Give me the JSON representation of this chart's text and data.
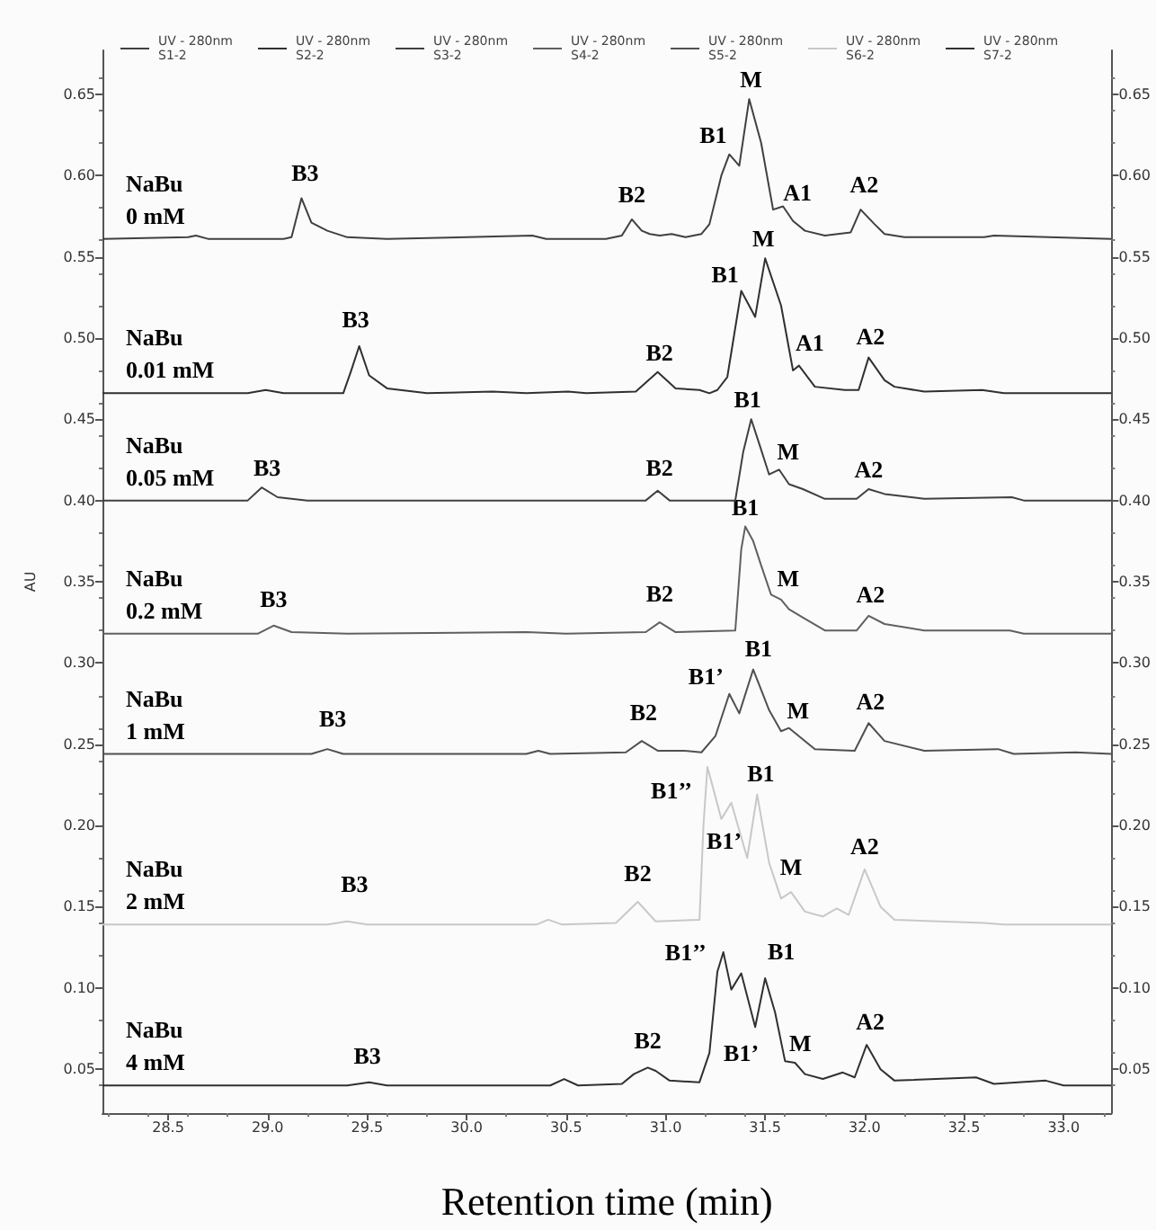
{
  "chart_data": {
    "type": "line",
    "xlabel": "Retention time (min)",
    "ylabel": "AU",
    "xlim": [
      28.17,
      33.24
    ],
    "xticks": [
      {
        "value": 28.5,
        "label": "28.5"
      },
      {
        "value": 29.0,
        "label": "29.0"
      },
      {
        "value": 29.5,
        "label": "29.5"
      },
      {
        "value": 30.0,
        "label": "30.0"
      },
      {
        "value": 30.5,
        "label": "30.5"
      },
      {
        "value": 31.0,
        "label": "31.0"
      },
      {
        "value": 31.5,
        "label": "31.5"
      },
      {
        "value": 32.0,
        "label": "32.0"
      },
      {
        "value": 32.5,
        "label": "32.5"
      },
      {
        "value": 33.0,
        "label": "33.0"
      }
    ],
    "ylim": [
      0.023,
      0.677
    ],
    "yticks": [
      {
        "value": 0.05,
        "label": "0.05"
      },
      {
        "value": 0.1,
        "label": "0.10"
      },
      {
        "value": 0.15,
        "label": "0.15"
      },
      {
        "value": 0.2,
        "label": "0.20"
      },
      {
        "value": 0.25,
        "label": "0.25"
      },
      {
        "value": 0.3,
        "label": "0.30"
      },
      {
        "value": 0.35,
        "label": "0.35"
      },
      {
        "value": 0.4,
        "label": "0.40"
      },
      {
        "value": 0.45,
        "label": "0.45"
      },
      {
        "value": 0.5,
        "label": "0.50"
      },
      {
        "value": 0.55,
        "label": "0.55"
      },
      {
        "value": 0.6,
        "label": "0.60"
      },
      {
        "value": 0.65,
        "label": "0.65"
      }
    ],
    "y2lim": [
      0.023,
      0.677
    ],
    "y2ticks": [
      {
        "value": 0.05,
        "label": "0.05"
      },
      {
        "value": 0.1,
        "label": "0.10"
      },
      {
        "value": 0.15,
        "label": "0.15"
      },
      {
        "value": 0.2,
        "label": "0.20"
      },
      {
        "value": 0.25,
        "label": "0.25"
      },
      {
        "value": 0.3,
        "label": "0.30"
      },
      {
        "value": 0.35,
        "label": "0.35"
      },
      {
        "value": 0.4,
        "label": "0.40"
      },
      {
        "value": 0.45,
        "label": "0.45"
      },
      {
        "value": 0.5,
        "label": "0.50"
      },
      {
        "value": 0.55,
        "label": "0.55"
      },
      {
        "value": 0.6,
        "label": "0.60"
      },
      {
        "value": 0.65,
        "label": "0.65"
      }
    ],
    "grid": false,
    "legend": "top",
    "marker": "none",
    "line_style": "solid",
    "series": [
      {
        "name": "UV - 280nm\nS1-2",
        "color": "#404040",
        "x": [
          28.17,
          28.6,
          28.64,
          28.7,
          29.08,
          29.12,
          29.17,
          29.22,
          29.3,
          29.4,
          29.6,
          30.0,
          30.33,
          30.4,
          30.7,
          30.78,
          30.83,
          30.88,
          30.92,
          30.97,
          31.03,
          31.1,
          31.18,
          31.22,
          31.28,
          31.32,
          31.37,
          31.42,
          31.48,
          31.54,
          31.59,
          31.64,
          31.7,
          31.8,
          31.93,
          31.98,
          32.05,
          32.1,
          32.2,
          32.6,
          32.65,
          33.24
        ],
        "values": [
          0.561,
          0.562,
          0.563,
          0.561,
          0.561,
          0.562,
          0.586,
          0.571,
          0.566,
          0.562,
          0.561,
          0.562,
          0.563,
          0.561,
          0.561,
          0.563,
          0.573,
          0.566,
          0.564,
          0.563,
          0.564,
          0.562,
          0.564,
          0.57,
          0.6,
          0.613,
          0.606,
          0.647,
          0.62,
          0.579,
          0.581,
          0.572,
          0.566,
          0.563,
          0.565,
          0.579,
          0.57,
          0.564,
          0.562,
          0.562,
          0.563,
          0.561
        ]
      },
      {
        "name": "UV - 280nm\nS2-2",
        "color": "#303030",
        "x": [
          28.17,
          28.9,
          28.99,
          29.08,
          29.38,
          29.42,
          29.46,
          29.51,
          29.6,
          29.8,
          30.13,
          30.3,
          30.51,
          30.6,
          30.85,
          30.96,
          31.05,
          31.17,
          31.22,
          31.26,
          31.31,
          31.38,
          31.45,
          31.5,
          31.58,
          31.64,
          31.67,
          31.75,
          31.9,
          31.97,
          32.02,
          32.1,
          32.15,
          32.3,
          32.59,
          32.7,
          33.24
        ],
        "values": [
          0.466,
          0.466,
          0.468,
          0.466,
          0.466,
          0.48,
          0.495,
          0.477,
          0.469,
          0.466,
          0.467,
          0.466,
          0.467,
          0.466,
          0.467,
          0.479,
          0.469,
          0.468,
          0.466,
          0.468,
          0.476,
          0.529,
          0.513,
          0.549,
          0.52,
          0.48,
          0.483,
          0.47,
          0.468,
          0.468,
          0.488,
          0.474,
          0.47,
          0.467,
          0.468,
          0.466,
          0.466
        ]
      },
      {
        "name": "UV - 280nm\nS3-2",
        "color": "#404040",
        "x": [
          28.17,
          28.9,
          28.97,
          29.05,
          29.2,
          30.9,
          30.96,
          31.02,
          31.35,
          31.39,
          31.43,
          31.47,
          31.52,
          31.57,
          31.62,
          31.69,
          31.8,
          31.96,
          32.02,
          32.1,
          32.3,
          32.74,
          32.8,
          33.24
        ],
        "values": [
          0.4,
          0.4,
          0.408,
          0.402,
          0.4,
          0.4,
          0.406,
          0.4,
          0.4,
          0.43,
          0.45,
          0.435,
          0.416,
          0.419,
          0.41,
          0.407,
          0.401,
          0.401,
          0.407,
          0.404,
          0.401,
          0.402,
          0.4,
          0.4
        ]
      },
      {
        "name": "UV - 280nm\nS4-2",
        "color": "#606060",
        "x": [
          28.17,
          28.95,
          29.03,
          29.12,
          29.4,
          30.3,
          30.5,
          30.9,
          30.97,
          31.05,
          31.35,
          31.38,
          31.4,
          31.44,
          31.48,
          31.53,
          31.58,
          31.62,
          31.69,
          31.8,
          31.96,
          32.02,
          32.1,
          32.3,
          32.73,
          32.8,
          33.24
        ],
        "values": [
          0.318,
          0.318,
          0.323,
          0.319,
          0.318,
          0.319,
          0.318,
          0.319,
          0.325,
          0.319,
          0.32,
          0.37,
          0.384,
          0.375,
          0.36,
          0.342,
          0.339,
          0.333,
          0.328,
          0.32,
          0.32,
          0.329,
          0.324,
          0.32,
          0.32,
          0.318,
          0.318
        ]
      },
      {
        "name": "UV - 280nm\nS5-2",
        "color": "#505050",
        "x": [
          28.17,
          29.22,
          29.3,
          29.38,
          30.3,
          30.36,
          30.42,
          30.8,
          30.88,
          30.96,
          31.09,
          31.18,
          31.25,
          31.32,
          31.37,
          31.44,
          31.52,
          31.58,
          31.62,
          31.75,
          31.95,
          32.02,
          32.1,
          32.3,
          32.67,
          32.75,
          33.06,
          33.24
        ],
        "values": [
          0.244,
          0.244,
          0.247,
          0.244,
          0.244,
          0.246,
          0.244,
          0.245,
          0.252,
          0.246,
          0.246,
          0.245,
          0.255,
          0.281,
          0.269,
          0.296,
          0.271,
          0.258,
          0.26,
          0.247,
          0.246,
          0.263,
          0.252,
          0.246,
          0.247,
          0.244,
          0.245,
          0.244
        ]
      },
      {
        "name": "UV - 280nm\nS6-2",
        "color": "#c8c8c8",
        "x": [
          28.17,
          29.3,
          29.4,
          29.5,
          30.35,
          30.41,
          30.48,
          30.75,
          30.86,
          30.95,
          31.17,
          31.19,
          31.21,
          31.28,
          31.33,
          31.41,
          31.46,
          31.52,
          31.58,
          31.63,
          31.7,
          31.79,
          31.86,
          31.92,
          32.0,
          32.08,
          32.15,
          32.6,
          32.7,
          33.24
        ],
        "values": [
          0.139,
          0.139,
          0.141,
          0.139,
          0.139,
          0.142,
          0.139,
          0.14,
          0.153,
          0.141,
          0.142,
          0.2,
          0.236,
          0.204,
          0.214,
          0.18,
          0.219,
          0.177,
          0.155,
          0.159,
          0.147,
          0.144,
          0.149,
          0.145,
          0.173,
          0.15,
          0.142,
          0.14,
          0.139,
          0.139
        ]
      },
      {
        "name": "UV - 280nm\nS7-2",
        "color": "#303030",
        "x": [
          28.17,
          29.4,
          29.51,
          29.6,
          30.42,
          30.49,
          30.56,
          30.78,
          30.84,
          30.91,
          30.95,
          31.02,
          31.17,
          31.22,
          31.26,
          31.29,
          31.33,
          31.38,
          31.45,
          31.5,
          31.55,
          31.6,
          31.65,
          31.7,
          31.79,
          31.89,
          31.95,
          32.01,
          32.08,
          32.15,
          32.56,
          32.65,
          32.91,
          33.0,
          33.24
        ],
        "values": [
          0.04,
          0.04,
          0.042,
          0.04,
          0.04,
          0.044,
          0.04,
          0.041,
          0.047,
          0.051,
          0.049,
          0.043,
          0.042,
          0.06,
          0.11,
          0.122,
          0.099,
          0.109,
          0.076,
          0.106,
          0.085,
          0.055,
          0.054,
          0.047,
          0.044,
          0.048,
          0.045,
          0.065,
          0.05,
          0.043,
          0.045,
          0.041,
          0.043,
          0.04,
          0.04
        ]
      }
    ],
    "annotations": [
      "NaBu\n0 mM",
      "NaBu\n0.01 mM",
      "NaBu\n0.05 mM",
      "NaBu\n0.2 mM",
      "NaBu\n1 mM",
      "NaBu\n2 mM",
      "NaBu\n4 mM",
      {
        "text": "B3",
        "x": 29.17,
        "y": 0.586
      },
      {
        "text": "B2",
        "x": 30.83,
        "y": 0.573
      },
      {
        "text": "B1",
        "x": 31.32,
        "y": 0.613
      },
      {
        "text": "M",
        "x": 31.42,
        "y": 0.647
      },
      {
        "text": "A1",
        "x": 31.59,
        "y": 0.581
      },
      {
        "text": "A2",
        "x": 31.98,
        "y": 0.579
      },
      {
        "text": "B3",
        "x": 29.46,
        "y": 0.495
      },
      {
        "text": "B2",
        "x": 30.96,
        "y": 0.479
      },
      {
        "text": "B1",
        "x": 31.38,
        "y": 0.529
      },
      {
        "text": "M",
        "x": 31.5,
        "y": 0.549
      },
      {
        "text": "A1",
        "x": 31.67,
        "y": 0.483
      },
      {
        "text": "A2",
        "x": 32.02,
        "y": 0.488
      },
      {
        "text": "B3",
        "x": 28.97,
        "y": 0.408
      },
      {
        "text": "B2",
        "x": 30.96,
        "y": 0.406
      },
      {
        "text": "B1",
        "x": 31.43,
        "y": 0.45
      },
      {
        "text": "M",
        "x": 31.57,
        "y": 0.419
      },
      {
        "text": "A2",
        "x": 32.02,
        "y": 0.407
      },
      {
        "text": "B3",
        "x": 29.03,
        "y": 0.323
      },
      {
        "text": "B2",
        "x": 30.97,
        "y": 0.325
      },
      {
        "text": "B1",
        "x": 31.4,
        "y": 0.384
      },
      {
        "text": "M",
        "x": 31.58,
        "y": 0.339
      },
      {
        "text": "A2",
        "x": 32.02,
        "y": 0.329
      },
      {
        "text": "B3",
        "x": 29.3,
        "y": 0.247
      },
      {
        "text": "B2",
        "x": 30.88,
        "y": 0.252
      },
      {
        "text": "B1’",
        "x": 31.32,
        "y": 0.281
      },
      {
        "text": "B1",
        "x": 31.44,
        "y": 0.296
      },
      {
        "text": "M",
        "x": 31.62,
        "y": 0.26
      },
      {
        "text": "A2",
        "x": 32.02,
        "y": 0.263
      },
      {
        "text": "B3",
        "x": 29.4,
        "y": 0.141
      },
      {
        "text": "B2",
        "x": 30.86,
        "y": 0.153
      },
      {
        "text": "B1’’",
        "x": 31.21,
        "y": 0.236
      },
      {
        "text": "B1’",
        "x": 31.33,
        "y": 0.214
      },
      {
        "text": "B1",
        "x": 31.46,
        "y": 0.219
      },
      {
        "text": "M",
        "x": 31.63,
        "y": 0.159
      },
      {
        "text": "A2",
        "x": 32.0,
        "y": 0.173
      },
      {
        "text": "B3",
        "x": 29.51,
        "y": 0.042
      },
      {
        "text": "B2",
        "x": 30.91,
        "y": 0.051
      },
      {
        "text": "B1’’",
        "x": 31.29,
        "y": 0.122
      },
      {
        "text": "B1’",
        "x": 31.38,
        "y": 0.109
      },
      {
        "text": "B1",
        "x": 31.5,
        "y": 0.106
      },
      {
        "text": "M",
        "x": 31.65,
        "y": 0.054
      },
      {
        "text": "A2",
        "x": 32.01,
        "y": 0.065
      }
    ]
  }
}
